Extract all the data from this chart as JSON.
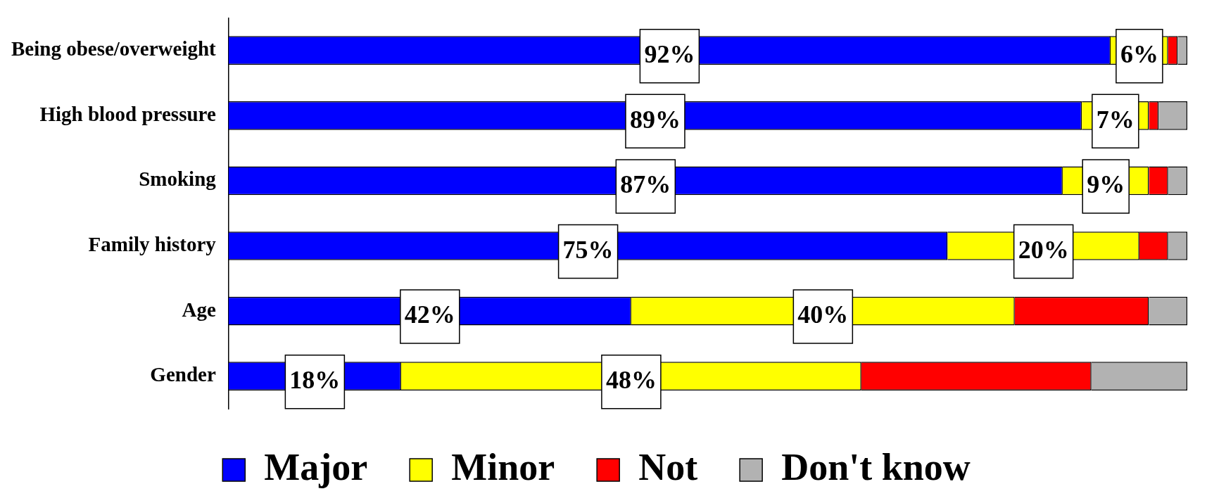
{
  "chart_data": {
    "type": "bar",
    "orientation": "horizontal",
    "stacked": true,
    "categories": [
      "Being obese/overweight",
      "High blood pressure",
      "Smoking",
      "Family history",
      "Age",
      "Gender"
    ],
    "series": [
      {
        "name": "Major",
        "color": "#0000ff",
        "values": [
          92,
          89,
          87,
          75,
          42,
          18
        ],
        "value_labels": [
          "92%",
          "89%",
          "87%",
          "75%",
          "42%",
          "18%"
        ]
      },
      {
        "name": "Minor",
        "color": "#ffff00",
        "values": [
          6,
          7,
          9,
          20,
          40,
          48
        ],
        "value_labels": [
          "6%",
          "7%",
          "9%",
          "20%",
          "40%",
          "48%"
        ]
      },
      {
        "name": "Not",
        "color": "#ff0000",
        "values": [
          1,
          1,
          2,
          3,
          14,
          24
        ]
      },
      {
        "name": "Don't know",
        "color": "#b2b2b2",
        "values": [
          1,
          3,
          2,
          2,
          4,
          10
        ]
      }
    ],
    "xlim": [
      0,
      100
    ],
    "tick_labels": "y",
    "legend": "bottom"
  }
}
